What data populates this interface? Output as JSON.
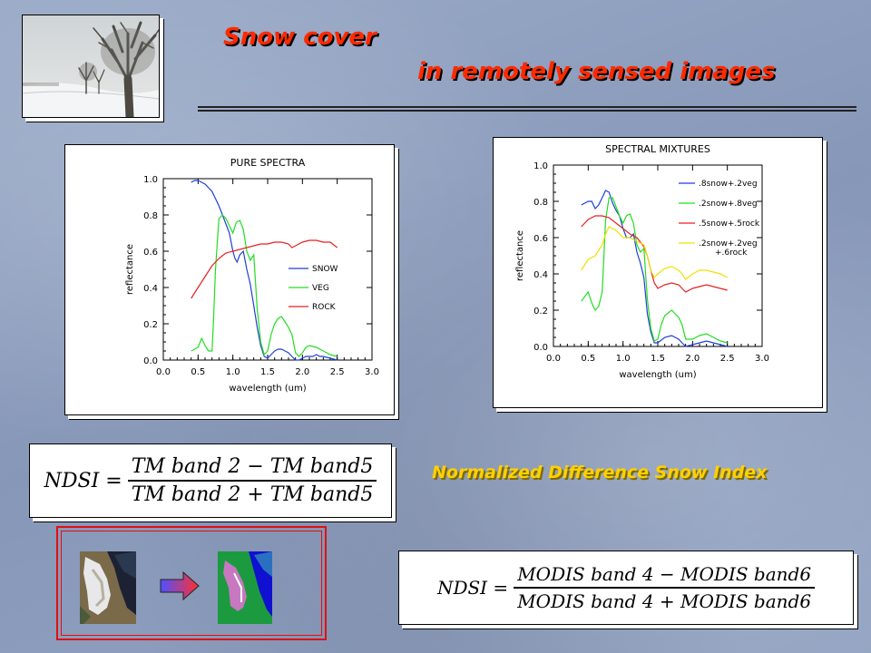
{
  "title": {
    "line1": "Snow cover",
    "line2": "in remotely sensed images"
  },
  "colors": {
    "title": "#ff2a00",
    "caption": "#ffd000",
    "snow": "#1f3fd6",
    "veg": "#22dd22",
    "rock": "#e82020",
    "mix4": "#f0e000"
  },
  "icons": {
    "photo": "winter-tree-photo",
    "arrow": "right-arrow-icon",
    "before": "satellite-true-color-icon",
    "after": "snow-classification-map-icon"
  },
  "caption": "Normalized Difference Snow Index",
  "formula_tm": {
    "lhs": "NDSI =",
    "num": "TM band 2 − TM band5",
    "den": "TM band 2 + TM  band5"
  },
  "formula_modis": {
    "lhs": "NDSI =",
    "num": "MODIS band 4 − MODIS band6",
    "den": "MODIS band 4 + MODIS band6"
  },
  "chart_data": [
    {
      "type": "line",
      "title": "PURE SPECTRA",
      "xlabel": "wavelength (um)",
      "ylabel": "reflectance",
      "xlim": [
        0.0,
        3.0
      ],
      "ylim": [
        0.0,
        1.0
      ],
      "xticks": [
        "0.0",
        "0.5",
        "1.0",
        "1.5",
        "2.0",
        "2.5",
        "3.0"
      ],
      "yticks": [
        "0.0",
        "0.2",
        "0.4",
        "0.6",
        "0.8",
        "1.0"
      ],
      "grid": false,
      "legend": "right-middle",
      "series": [
        {
          "name": "SNOW",
          "color": "#1f3fd6",
          "x": [
            0.4,
            0.45,
            0.5,
            0.55,
            0.6,
            0.65,
            0.7,
            0.75,
            0.8,
            0.85,
            0.9,
            0.95,
            1.0,
            1.03,
            1.06,
            1.1,
            1.15,
            1.2,
            1.25,
            1.3,
            1.35,
            1.4,
            1.45,
            1.5,
            1.55,
            1.6,
            1.65,
            1.7,
            1.75,
            1.8,
            1.85,
            1.9,
            1.95,
            2.0,
            2.05,
            2.1,
            2.15,
            2.2,
            2.25,
            2.3,
            2.4,
            2.5
          ],
          "y": [
            0.98,
            0.99,
            0.99,
            0.98,
            0.97,
            0.95,
            0.93,
            0.89,
            0.85,
            0.8,
            0.75,
            0.7,
            0.6,
            0.56,
            0.54,
            0.58,
            0.6,
            0.5,
            0.42,
            0.3,
            0.18,
            0.08,
            0.02,
            0.01,
            0.03,
            0.05,
            0.06,
            0.06,
            0.05,
            0.04,
            0.02,
            0.0,
            0.0,
            0.01,
            0.02,
            0.02,
            0.02,
            0.03,
            0.02,
            0.02,
            0.01,
            0.0
          ]
        },
        {
          "name": "VEG",
          "color": "#22dd22",
          "x": [
            0.4,
            0.5,
            0.55,
            0.6,
            0.65,
            0.7,
            0.72,
            0.75,
            0.8,
            0.85,
            0.9,
            0.95,
            1.0,
            1.05,
            1.1,
            1.15,
            1.2,
            1.25,
            1.3,
            1.35,
            1.4,
            1.45,
            1.5,
            1.55,
            1.6,
            1.65,
            1.7,
            1.75,
            1.8,
            1.85,
            1.9,
            1.95,
            2.0,
            2.05,
            2.1,
            2.2,
            2.3,
            2.4,
            2.5
          ],
          "y": [
            0.05,
            0.07,
            0.12,
            0.08,
            0.05,
            0.05,
            0.2,
            0.5,
            0.78,
            0.8,
            0.78,
            0.74,
            0.7,
            0.76,
            0.77,
            0.72,
            0.6,
            0.55,
            0.58,
            0.28,
            0.1,
            0.03,
            0.05,
            0.14,
            0.2,
            0.23,
            0.24,
            0.21,
            0.18,
            0.14,
            0.04,
            0.02,
            0.04,
            0.07,
            0.08,
            0.07,
            0.05,
            0.03,
            0.02
          ]
        },
        {
          "name": "ROCK",
          "color": "#e82020",
          "x": [
            0.4,
            0.5,
            0.6,
            0.7,
            0.8,
            0.9,
            1.0,
            1.1,
            1.2,
            1.3,
            1.4,
            1.5,
            1.6,
            1.7,
            1.8,
            1.85,
            1.9,
            2.0,
            2.1,
            2.2,
            2.3,
            2.4,
            2.5
          ],
          "y": [
            0.34,
            0.4,
            0.46,
            0.52,
            0.56,
            0.59,
            0.6,
            0.61,
            0.62,
            0.63,
            0.64,
            0.64,
            0.65,
            0.65,
            0.64,
            0.62,
            0.63,
            0.65,
            0.66,
            0.66,
            0.65,
            0.65,
            0.62
          ]
        }
      ]
    },
    {
      "type": "line",
      "title": "SPECTRAL MIXTURES",
      "xlabel": "wavelength (um)",
      "ylabel": "reflectance",
      "xlim": [
        0.0,
        3.0
      ],
      "ylim": [
        0.0,
        1.0
      ],
      "xticks": [
        "0.0",
        "0.5",
        "1.0",
        "1.5",
        "2.0",
        "2.5",
        "3.0"
      ],
      "yticks": [
        "0.0",
        "0.2",
        "0.4",
        "0.6",
        "0.8",
        "1.0"
      ],
      "grid": false,
      "legend": "top-right",
      "series": [
        {
          "name": ".8snow+.2veg",
          "color": "#1f3fd6",
          "x": [
            0.4,
            0.5,
            0.55,
            0.6,
            0.65,
            0.7,
            0.75,
            0.8,
            0.85,
            0.9,
            0.95,
            1.0,
            1.05,
            1.1,
            1.15,
            1.2,
            1.25,
            1.3,
            1.35,
            1.4,
            1.45,
            1.5,
            1.6,
            1.7,
            1.8,
            1.85,
            1.9,
            2.0,
            2.1,
            2.2,
            2.3,
            2.4,
            2.5
          ],
          "y": [
            0.78,
            0.8,
            0.8,
            0.76,
            0.78,
            0.82,
            0.86,
            0.85,
            0.79,
            0.75,
            0.72,
            0.65,
            0.6,
            0.6,
            0.62,
            0.52,
            0.46,
            0.38,
            0.18,
            0.08,
            0.02,
            0.02,
            0.05,
            0.06,
            0.04,
            0.02,
            0.0,
            0.01,
            0.02,
            0.03,
            0.02,
            0.01,
            0.0
          ]
        },
        {
          "name": ".2snow+.8veg",
          "color": "#22dd22",
          "x": [
            0.4,
            0.5,
            0.55,
            0.6,
            0.65,
            0.7,
            0.72,
            0.75,
            0.8,
            0.85,
            0.9,
            0.95,
            1.0,
            1.05,
            1.1,
            1.15,
            1.2,
            1.25,
            1.3,
            1.35,
            1.4,
            1.45,
            1.5,
            1.55,
            1.6,
            1.7,
            1.8,
            1.85,
            1.9,
            2.0,
            2.1,
            2.2,
            2.3,
            2.4,
            2.5
          ],
          "y": [
            0.25,
            0.3,
            0.24,
            0.2,
            0.22,
            0.3,
            0.45,
            0.7,
            0.82,
            0.82,
            0.77,
            0.72,
            0.68,
            0.72,
            0.73,
            0.68,
            0.56,
            0.52,
            0.54,
            0.26,
            0.1,
            0.03,
            0.04,
            0.12,
            0.17,
            0.2,
            0.16,
            0.12,
            0.04,
            0.04,
            0.06,
            0.07,
            0.05,
            0.03,
            0.02
          ]
        },
        {
          "name": ".5snow+.5rock",
          "color": "#e82020",
          "x": [
            0.4,
            0.5,
            0.6,
            0.7,
            0.8,
            0.9,
            1.0,
            1.1,
            1.2,
            1.3,
            1.35,
            1.4,
            1.45,
            1.5,
            1.6,
            1.7,
            1.8,
            1.85,
            1.9,
            2.0,
            2.1,
            2.2,
            2.3,
            2.4,
            2.5
          ],
          "y": [
            0.66,
            0.7,
            0.72,
            0.72,
            0.71,
            0.68,
            0.65,
            0.62,
            0.6,
            0.55,
            0.5,
            0.42,
            0.35,
            0.32,
            0.34,
            0.35,
            0.34,
            0.32,
            0.3,
            0.32,
            0.33,
            0.34,
            0.33,
            0.32,
            0.31
          ]
        },
        {
          "name": ".2snow+.2veg +.6rock",
          "color": "#f0e000",
          "x": [
            0.4,
            0.5,
            0.6,
            0.7,
            0.75,
            0.8,
            0.9,
            1.0,
            1.1,
            1.2,
            1.3,
            1.35,
            1.4,
            1.45,
            1.5,
            1.6,
            1.7,
            1.8,
            1.85,
            1.9,
            2.0,
            2.1,
            2.2,
            2.3,
            2.4,
            2.5
          ],
          "y": [
            0.42,
            0.48,
            0.5,
            0.56,
            0.62,
            0.66,
            0.64,
            0.6,
            0.6,
            0.58,
            0.56,
            0.5,
            0.42,
            0.38,
            0.4,
            0.43,
            0.44,
            0.42,
            0.4,
            0.37,
            0.4,
            0.42,
            0.42,
            0.41,
            0.4,
            0.38
          ]
        }
      ]
    }
  ]
}
